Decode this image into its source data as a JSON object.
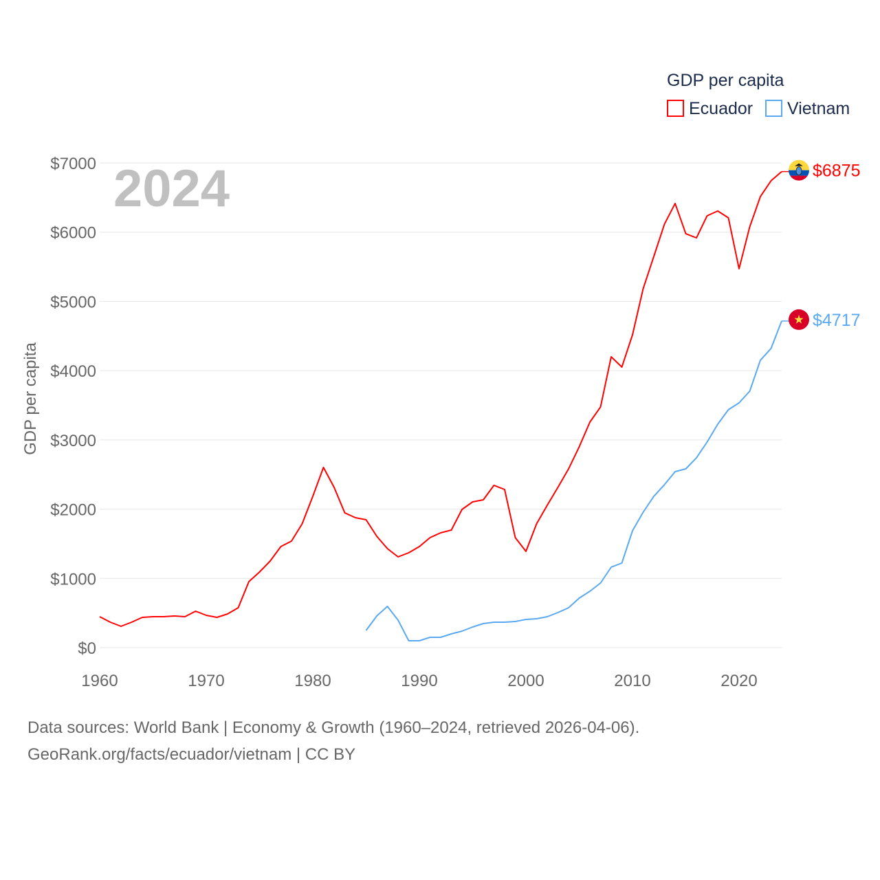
{
  "chart_data": {
    "type": "line",
    "title": "GDP per capita",
    "year_label": "2024",
    "xlabel": "",
    "ylabel": "GDP per capita",
    "xlim": [
      1960,
      2024
    ],
    "ylim": [
      0,
      7000
    ],
    "x_ticks": [
      1960,
      1970,
      1980,
      1990,
      2000,
      2010,
      2020
    ],
    "y_ticks": [
      0,
      1000,
      2000,
      3000,
      4000,
      5000,
      6000,
      7000
    ],
    "y_tick_labels": [
      "$0",
      "$1000",
      "$2000",
      "$3000",
      "$4000",
      "$5000",
      "$6000",
      "$7000"
    ],
    "grid": true,
    "legend_position": "top-right",
    "series": [
      {
        "name": "Ecuador",
        "color": "#ff0000",
        "end_label": "$6875",
        "flag": "ecuador-flag",
        "start_year": 1960,
        "values": [
          447,
          367,
          308,
          367,
          437,
          447,
          447,
          457,
          447,
          526,
          467,
          437,
          487,
          576,
          953,
          1092,
          1251,
          1460,
          1539,
          1788,
          2185,
          2602,
          2314,
          1946,
          1877,
          1847,
          1609,
          1430,
          1311,
          1370,
          1460,
          1589,
          1658,
          1698,
          1996,
          2105,
          2135,
          2344,
          2284,
          1589,
          1390,
          1788,
          2056,
          2314,
          2582,
          2900,
          3257,
          3476,
          4200,
          4052,
          4518,
          5184,
          5650,
          6117,
          6415,
          5978,
          5918,
          6236,
          6306,
          6207,
          5472,
          6077,
          6514,
          6743,
          6875
        ]
      },
      {
        "name": "Vietnam",
        "color": "#5aa9f0",
        "end_label": "$4717",
        "flag": "vietnam-flag",
        "start_year": 1985,
        "values": [
          248,
          457,
          596,
          397,
          99,
          99,
          149,
          149,
          199,
          238,
          298,
          348,
          367,
          367,
          377,
          407,
          417,
          447,
          506,
          576,
          715,
          814,
          933,
          1162,
          1221,
          1688,
          1956,
          2185,
          2354,
          2542,
          2582,
          2741,
          2969,
          3227,
          3436,
          3535,
          3704,
          4151,
          4320,
          4717
        ]
      }
    ]
  },
  "footer": {
    "line1": "Data sources: World Bank | Economy & Growth (1960–2024, retrieved 2026-04-06).",
    "line2": "GeoRank.org/facts/ecuador/vietnam | CC BY"
  }
}
